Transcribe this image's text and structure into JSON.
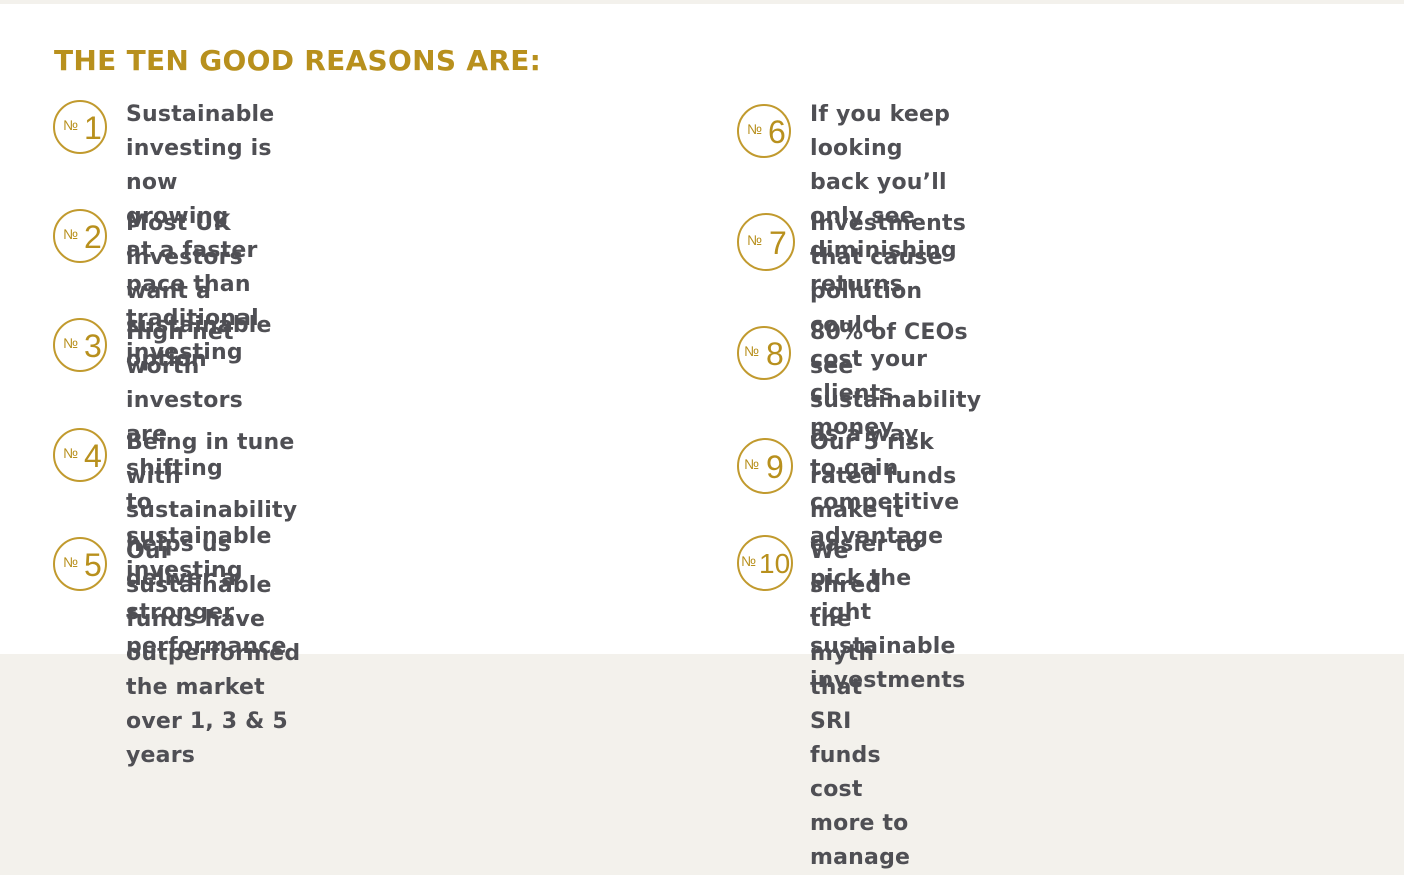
{
  "heading": "THE TEN GOOD REASONS ARE:",
  "number_prefix": "№",
  "reasons": [
    {
      "number": "1",
      "text": "Sustainable investing is now growing\nat a faster pace than traditional investing"
    },
    {
      "number": "2",
      "text": "Most UK investors want a sustainable\noption"
    },
    {
      "number": "3",
      "text": "High net worth investors are shifting\nto sustainable investing"
    },
    {
      "number": "4",
      "text": "Being in tune with sustainability helps us\ndeliver a stronger performance"
    },
    {
      "number": "5",
      "text": "Our sustainable funds have outperformed\nthe market over 1, 3 & 5 years"
    },
    {
      "number": "6",
      "text": "If you keep looking back you’ll only see\ndiminishing returns"
    },
    {
      "number": "7",
      "text": "Investments that cause pollution could\ncost your clients money"
    },
    {
      "number": "8",
      "text": "80% of CEOs see sustainability as a way\nto gain competitive advantage"
    },
    {
      "number": "9",
      "text": "Our 5 risk rated funds make it easier to\npick the right sustainable investments"
    },
    {
      "number": "10",
      "text": "We shred the myth that SRI funds cost\nmore to manage"
    }
  ],
  "colors": {
    "accent": "#b8901d",
    "text": "#4f4f54",
    "background": "#ffffff"
  }
}
